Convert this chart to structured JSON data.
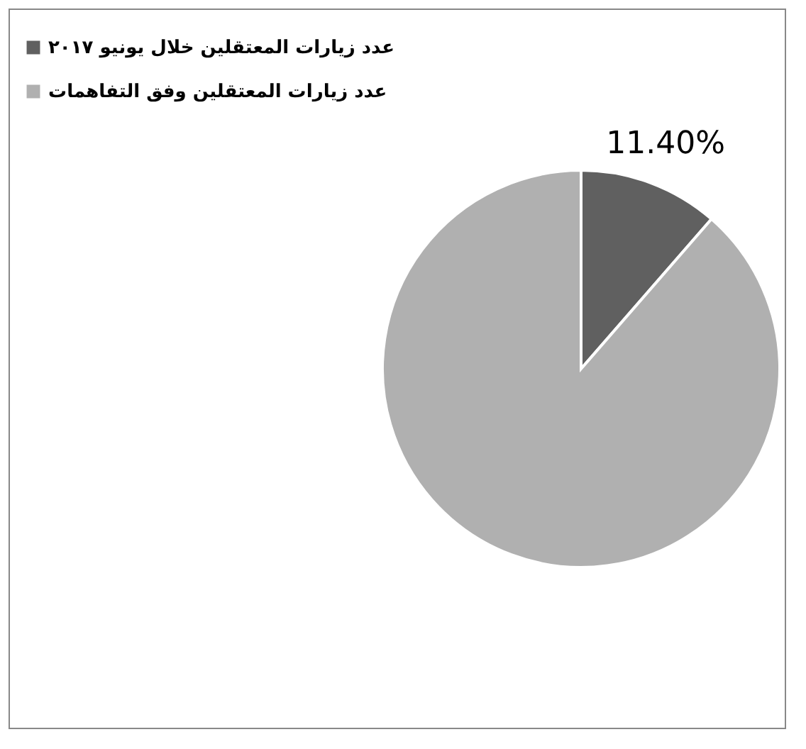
{
  "chart_data": {
    "type": "pie",
    "categories": [
      "عدد زيارات المعتقلين خلال يونيو ٢٠١٧",
      "عدد زيارات المعتقلين وفق التفاهمات"
    ],
    "values": [
      11.4,
      88.6
    ],
    "colors": [
      "#606060",
      "#b0b0b0"
    ],
    "value_labels": [
      "11.40%",
      null
    ],
    "legend": "left"
  }
}
